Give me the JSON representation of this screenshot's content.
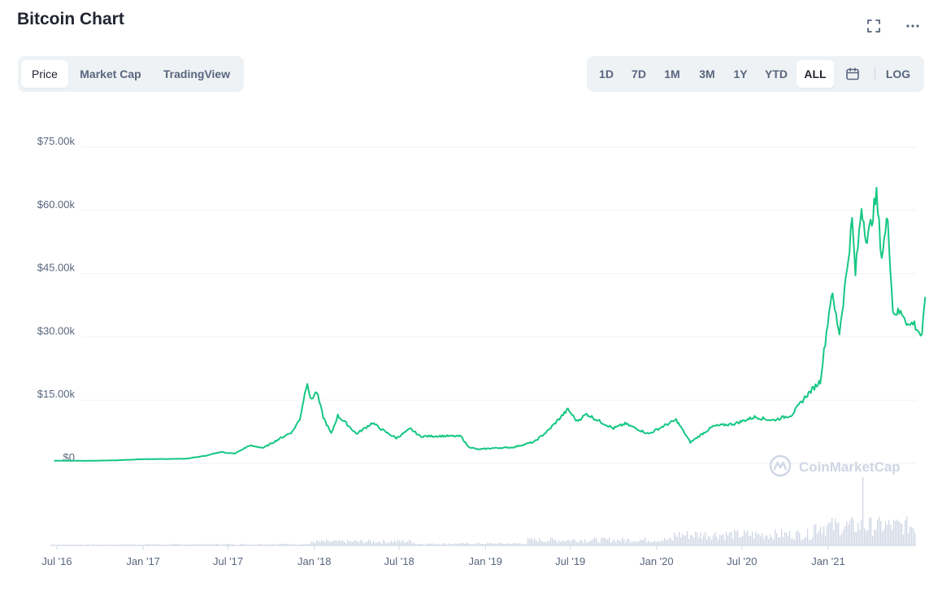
{
  "header": {
    "title": "Bitcoin Chart"
  },
  "icons": {
    "fullscreen": "fullscreen-icon",
    "more": "more-icon",
    "calendar": "calendar-icon"
  },
  "tabs": [
    {
      "label": "Price",
      "active": true
    },
    {
      "label": "Market Cap",
      "active": false
    },
    {
      "label": "TradingView",
      "active": false
    }
  ],
  "ranges": [
    {
      "label": "1D",
      "active": false
    },
    {
      "label": "7D",
      "active": false
    },
    {
      "label": "1M",
      "active": false
    },
    {
      "label": "3M",
      "active": false
    },
    {
      "label": "1Y",
      "active": false
    },
    {
      "label": "YTD",
      "active": false
    },
    {
      "label": "ALL",
      "active": true
    }
  ],
  "scale_toggle": "LOG",
  "watermark": "CoinMarketCap",
  "colors": {
    "line": "#16c784",
    "volume": "#cfd6e4",
    "grid": "#eff2f5"
  },
  "chart_data": {
    "type": "line",
    "title": "",
    "xlabel": "",
    "ylabel": "",
    "ylim": [
      0,
      75000
    ],
    "yticks": [
      0,
      15000,
      30000,
      45000,
      60000,
      75000
    ],
    "ytick_labels": [
      "$0",
      "$15.00k",
      "$30.00k",
      "$45.00k",
      "$60.00k",
      "$75.00k"
    ],
    "x_tick_labels": [
      "Jul '16",
      "Jan '17",
      "Jul '17",
      "Jan '18",
      "Jul '18",
      "Jan '19",
      "Jul '19",
      "Jan '20",
      "Jul '20",
      "Jan '21"
    ],
    "x_tick_dates": [
      "2016-07-01",
      "2017-01-01",
      "2017-07-01",
      "2018-01-01",
      "2018-07-01",
      "2019-01-01",
      "2019-07-01",
      "2020-01-01",
      "2020-07-01",
      "2021-01-01"
    ],
    "grid": true,
    "series": [
      {
        "points": [
          [
            "2016-06-25",
            650
          ],
          [
            "2016-09-01",
            600
          ],
          [
            "2016-11-01",
            700
          ],
          [
            "2017-01-01",
            1000
          ],
          [
            "2017-02-15",
            1050
          ],
          [
            "2017-04-01",
            1100
          ],
          [
            "2017-05-15",
            1800
          ],
          [
            "2017-06-15",
            2700
          ],
          [
            "2017-07-15",
            2300
          ],
          [
            "2017-08-15",
            4200
          ],
          [
            "2017-09-15",
            3700
          ],
          [
            "2017-10-15",
            5600
          ],
          [
            "2017-11-15",
            7500
          ],
          [
            "2017-12-01",
            10500
          ],
          [
            "2017-12-17",
            19500
          ],
          [
            "2017-12-24",
            15000
          ],
          [
            "2018-01-06",
            17000
          ],
          [
            "2018-01-20",
            11000
          ],
          [
            "2018-02-06",
            7000
          ],
          [
            "2018-02-20",
            11300
          ],
          [
            "2018-03-10",
            9500
          ],
          [
            "2018-04-01",
            7000
          ],
          [
            "2018-05-05",
            9600
          ],
          [
            "2018-06-01",
            7500
          ],
          [
            "2018-06-25",
            6000
          ],
          [
            "2018-07-25",
            8200
          ],
          [
            "2018-08-15",
            6400
          ],
          [
            "2018-10-01",
            6500
          ],
          [
            "2018-11-10",
            6400
          ],
          [
            "2018-11-25",
            4000
          ],
          [
            "2018-12-15",
            3300
          ],
          [
            "2019-01-15",
            3600
          ],
          [
            "2019-03-01",
            3800
          ],
          [
            "2019-04-15",
            5100
          ],
          [
            "2019-05-15",
            7800
          ],
          [
            "2019-06-26",
            12800
          ],
          [
            "2019-07-15",
            10000
          ],
          [
            "2019-08-05",
            11700
          ],
          [
            "2019-09-01",
            10000
          ],
          [
            "2019-10-01",
            8300
          ],
          [
            "2019-10-26",
            9400
          ],
          [
            "2019-12-15",
            7000
          ],
          [
            "2020-01-15",
            8800
          ],
          [
            "2020-02-12",
            10300
          ],
          [
            "2020-03-13",
            5000
          ],
          [
            "2020-04-01",
            6500
          ],
          [
            "2020-05-01",
            8800
          ],
          [
            "2020-06-15",
            9400
          ],
          [
            "2020-07-28",
            11000
          ],
          [
            "2020-09-05",
            10200
          ],
          [
            "2020-10-15",
            11500
          ],
          [
            "2020-11-15",
            16000
          ],
          [
            "2020-12-15",
            19500
          ],
          [
            "2021-01-08",
            40500
          ],
          [
            "2021-01-25",
            31000
          ],
          [
            "2021-02-10",
            46000
          ],
          [
            "2021-02-21",
            57500
          ],
          [
            "2021-02-28",
            45000
          ],
          [
            "2021-03-13",
            61000
          ],
          [
            "2021-03-25",
            52500
          ],
          [
            "2021-04-14",
            63500
          ],
          [
            "2021-04-25",
            49000
          ],
          [
            "2021-05-08",
            58500
          ],
          [
            "2021-05-19",
            36000
          ],
          [
            "2021-06-10",
            35500
          ],
          [
            "2021-06-22",
            32500
          ],
          [
            "2021-07-01",
            33500
          ],
          [
            "2021-07-20",
            30000
          ],
          [
            "2021-07-27",
            39500
          ]
        ]
      }
    ]
  }
}
